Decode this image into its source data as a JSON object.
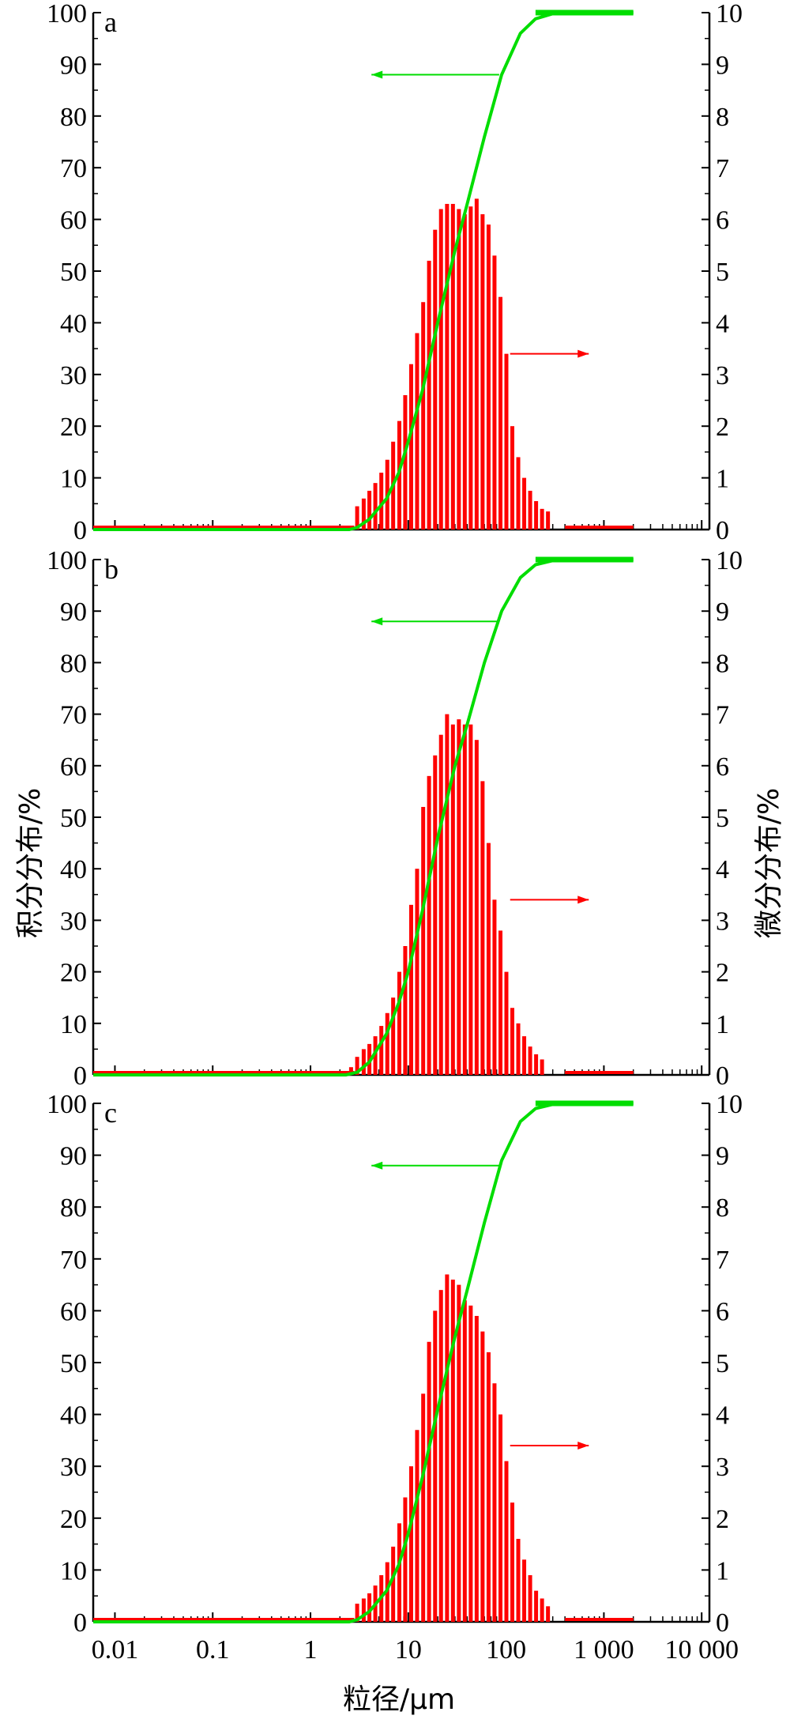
{
  "chart_data": {
    "type": "bar",
    "x_axis": {
      "label": "粒径/μm",
      "scale": "log",
      "range": [
        0.006,
        12000
      ],
      "ticks": [
        0.01,
        0.1,
        1,
        10,
        100,
        1000,
        10000
      ],
      "tick_labels": [
        "0.01",
        "0.1",
        "1",
        "10",
        "100",
        "1 000",
        "10 000"
      ]
    },
    "left_axis": {
      "label": "积分分布/%",
      "range": [
        0,
        100
      ],
      "ticks": [
        0,
        10,
        20,
        30,
        40,
        50,
        60,
        70,
        80,
        90,
        100
      ],
      "tick_labels": [
        "0",
        "10",
        "20",
        "30",
        "40",
        "50",
        "60",
        "70",
        "80",
        "90",
        "100"
      ]
    },
    "right_axis": {
      "label": "微分分布/%",
      "range": [
        0,
        10
      ],
      "ticks": [
        0,
        1,
        2,
        3,
        4,
        5,
        6,
        7,
        8,
        9,
        10
      ],
      "tick_labels": [
        "0",
        "1",
        "2",
        "3",
        "4",
        "5",
        "6",
        "7",
        "8",
        "9",
        "10"
      ]
    },
    "colors": {
      "differential": "#ff0000",
      "cumulative": "#00dd00",
      "axes": "#000000"
    },
    "panels": [
      {
        "label": "a",
        "differential": {
          "x": [
            3.0,
            3.5,
            4.0,
            4.6,
            5.3,
            6.1,
            7.0,
            8.1,
            9.3,
            10.7,
            12.3,
            14.2,
            16.3,
            18.8,
            21.6,
            24.9,
            28.6,
            32.9,
            37.8,
            43.5,
            50.0,
            57.5,
            66.2,
            76.1,
            87.6,
            100.7,
            115.8,
            133.2,
            153.2,
            176.2,
            202.7,
            233.1,
            268.1,
            308.4,
            354.6
          ],
          "y": [
            0.45,
            0.6,
            0.75,
            0.9,
            1.1,
            1.35,
            1.7,
            2.1,
            2.6,
            3.2,
            3.8,
            4.4,
            5.2,
            5.8,
            6.2,
            6.3,
            6.3,
            6.2,
            6.1,
            6.25,
            6.4,
            6.1,
            5.9,
            5.3,
            4.5,
            3.4,
            2.0,
            1.4,
            1.0,
            0.75,
            0.55,
            0.4,
            0.35,
            0.0,
            0.0
          ]
        },
        "cumulative": {
          "x": [
            0.006,
            1,
            2.5,
            3,
            4,
            6,
            8,
            10,
            14,
            20,
            30,
            40,
            60,
            90,
            140,
            200,
            300,
            400,
            500,
            2000
          ],
          "y": [
            0,
            0,
            0,
            0.4,
            2,
            6,
            11,
            17,
            27,
            40,
            54,
            63,
            76,
            88,
            96,
            98.8,
            99.8,
            100,
            100,
            100
          ]
        }
      },
      {
        "label": "b",
        "differential": {
          "x": [
            2.6,
            3.0,
            3.5,
            4.0,
            4.6,
            5.3,
            6.1,
            7.0,
            8.1,
            9.3,
            10.7,
            12.3,
            14.2,
            16.3,
            18.8,
            21.6,
            24.9,
            28.6,
            32.9,
            37.8,
            43.5,
            50.0,
            57.5,
            66.2,
            76.1,
            87.6,
            100.7,
            115.8,
            133.2,
            153.2,
            176.2,
            202.7,
            233.1,
            268.1
          ],
          "y": [
            0.15,
            0.35,
            0.5,
            0.6,
            0.75,
            0.95,
            1.2,
            1.5,
            2.0,
            2.5,
            3.3,
            4.0,
            5.2,
            5.8,
            6.2,
            6.6,
            7.0,
            6.8,
            6.9,
            6.8,
            6.8,
            6.5,
            5.7,
            4.5,
            3.4,
            2.8,
            2.0,
            1.3,
            1.0,
            0.75,
            0.55,
            0.4,
            0.3,
            0.0
          ]
        },
        "cumulative": {
          "x": [
            0.006,
            1,
            2.3,
            3,
            4,
            6,
            8,
            10,
            14,
            20,
            30,
            40,
            60,
            90,
            140,
            200,
            300,
            400,
            500,
            2000
          ],
          "y": [
            0,
            0,
            0,
            0.5,
            2.5,
            8,
            14,
            20,
            32,
            46,
            60,
            68,
            80,
            90,
            96.5,
            99,
            99.8,
            100,
            100,
            100
          ]
        }
      },
      {
        "label": "c",
        "differential": {
          "x": [
            3.0,
            3.5,
            4.0,
            4.6,
            5.3,
            6.1,
            7.0,
            8.1,
            9.3,
            10.7,
            12.3,
            14.2,
            16.3,
            18.8,
            21.6,
            24.9,
            28.6,
            32.9,
            37.8,
            43.5,
            50.0,
            57.5,
            66.2,
            76.1,
            87.6,
            100.7,
            115.8,
            133.2,
            153.2,
            176.2,
            202.7,
            233.1,
            268.1,
            308.4
          ],
          "y": [
            0.35,
            0.45,
            0.55,
            0.7,
            0.9,
            1.15,
            1.45,
            1.9,
            2.4,
            3.0,
            3.7,
            4.4,
            5.4,
            6.0,
            6.4,
            6.7,
            6.6,
            6.5,
            6.2,
            6.1,
            5.9,
            5.6,
            5.2,
            4.6,
            4.0,
            3.1,
            2.3,
            1.6,
            1.2,
            0.9,
            0.6,
            0.45,
            0.3,
            0.0
          ]
        },
        "cumulative": {
          "x": [
            0.006,
            1,
            2.5,
            3,
            4,
            6,
            8,
            10,
            14,
            20,
            30,
            40,
            60,
            90,
            140,
            200,
            300,
            400,
            500,
            2000
          ],
          "y": [
            0,
            0,
            0,
            0.4,
            2,
            6,
            11,
            17,
            28,
            41,
            55,
            64,
            77,
            89,
            96.5,
            99,
            99.8,
            100,
            100,
            100
          ]
        }
      }
    ]
  }
}
